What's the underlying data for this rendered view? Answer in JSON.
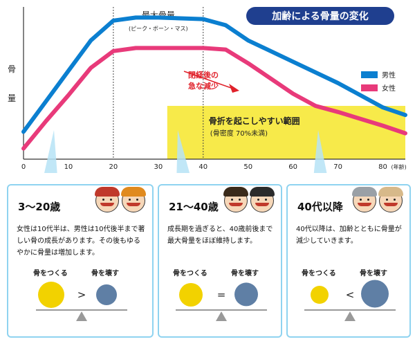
{
  "chart_data": {
    "type": "line",
    "title": "加齢による骨量の変化",
    "ylabel": "骨量",
    "xlabel": "",
    "x_unit": "(年齢)",
    "xlim": [
      0,
      85
    ],
    "ylim": [
      0,
      100
    ],
    "xticks": [
      0,
      10,
      20,
      30,
      40,
      50,
      60,
      70,
      80
    ],
    "series": [
      {
        "name": "男性",
        "color": "#0b7fd0",
        "points": [
          [
            0,
            18
          ],
          [
            5,
            38
          ],
          [
            10,
            58
          ],
          [
            15,
            78
          ],
          [
            20,
            91
          ],
          [
            25,
            93
          ],
          [
            30,
            93
          ],
          [
            40,
            92
          ],
          [
            45,
            88
          ],
          [
            50,
            78
          ],
          [
            60,
            64
          ],
          [
            70,
            50
          ],
          [
            80,
            34
          ],
          [
            85,
            29
          ]
        ]
      },
      {
        "name": "女性",
        "color": "#e83a7a",
        "points": [
          [
            0,
            7
          ],
          [
            5,
            25
          ],
          [
            10,
            42
          ],
          [
            15,
            60
          ],
          [
            20,
            71
          ],
          [
            25,
            73
          ],
          [
            30,
            73
          ],
          [
            40,
            73
          ],
          [
            45,
            72
          ],
          [
            50,
            63
          ],
          [
            55,
            53
          ],
          [
            60,
            43
          ],
          [
            65,
            35
          ],
          [
            70,
            31
          ],
          [
            80,
            22
          ],
          [
            85,
            17
          ]
        ]
      }
    ],
    "legend_position": "right",
    "peak_label": "最大骨量",
    "peak_sub": "(ピーク・ボーン・マス)",
    "peak_range": [
      20,
      40
    ],
    "menopause_label_1": "閉経後の",
    "menopause_label_2": "急な減少",
    "fracture_zone": {
      "x_from": 32,
      "x_to": 85,
      "y_max": 35
    },
    "fracture_label": "骨折を起こしやすい範囲",
    "fracture_sub": "(骨密度 70%未満)"
  },
  "colors": {
    "title_bg": "#1f3f8f",
    "zone": "#f7ea4a",
    "card_border": "#8fd3f0",
    "bone_make": "#f2d200",
    "bone_break": "#5f7fa5",
    "scale": "#999999"
  },
  "cards": [
    {
      "title": "3〜20歳",
      "body": "女性は10代半は、男性は10代後半まで著しい骨の成長があります。その後もゆるやかに骨量は増加します。",
      "make_label": "骨をつくる",
      "break_label": "骨を壊す",
      "symbol": ">",
      "make_size": 19,
      "break_size": 15
    },
    {
      "title": "21〜40歳",
      "body": "成長期を過ぎると、40歳前後まで最大骨量をほぼ維持します。",
      "make_label": "骨をつくる",
      "break_label": "骨を壊す",
      "symbol": "=",
      "make_size": 17,
      "break_size": 17
    },
    {
      "title": "40代以降",
      "body": "40代以降は、加齢とともに骨量が減少していきます。",
      "make_label": "骨をつくる",
      "break_label": "骨を壊す",
      "symbol": "<",
      "make_size": 13,
      "break_size": 20
    }
  ]
}
